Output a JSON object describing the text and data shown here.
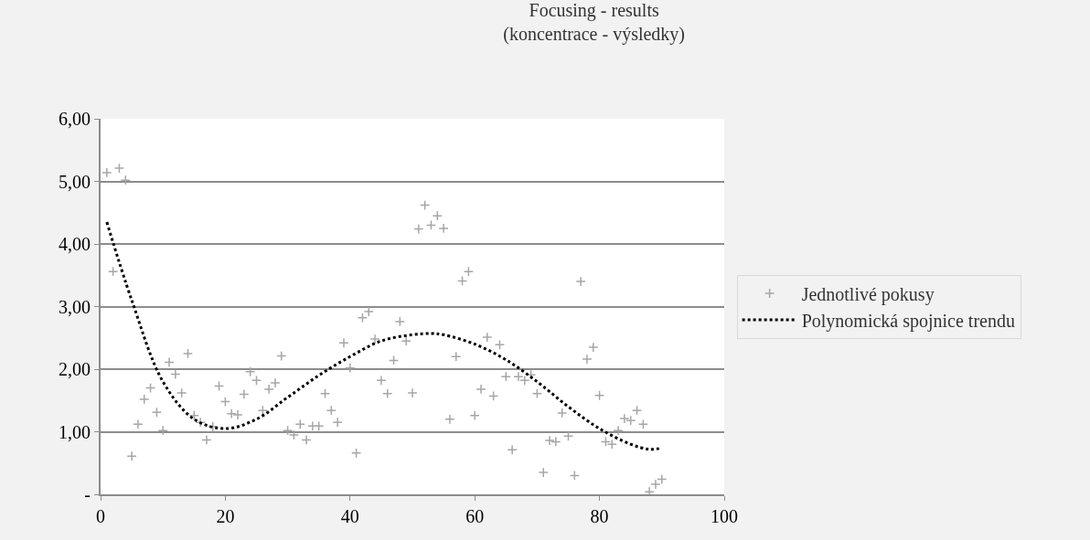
{
  "chart_data": {
    "type": "scatter",
    "title": "Focusing - results\n(koncentrace - výsledky)",
    "xlim": [
      0,
      100
    ],
    "xticks": [
      0,
      20,
      40,
      60,
      80,
      100
    ],
    "ylim": [
      0,
      6
    ],
    "yticks": [
      {
        "value": 0,
        "label": "-"
      },
      {
        "value": 1,
        "label": "1,00"
      },
      {
        "value": 2,
        "label": "2,00"
      },
      {
        "value": 3,
        "label": "3,00"
      },
      {
        "value": 4,
        "label": "4,00"
      },
      {
        "value": 5,
        "label": "5,00"
      },
      {
        "value": 6,
        "label": "6,00"
      }
    ],
    "grid": "y",
    "legend": "right",
    "series": [
      {
        "name": "Jednotlivé pokusy",
        "marker": "cross",
        "color": "#a6a6a6",
        "x": [
          1,
          2,
          3,
          4,
          5,
          6,
          7,
          8,
          9,
          10,
          11,
          12,
          13,
          14,
          15,
          16,
          17,
          18,
          19,
          20,
          21,
          22,
          23,
          24,
          25,
          26,
          27,
          28,
          29,
          30,
          31,
          32,
          33,
          34,
          35,
          36,
          37,
          38,
          39,
          40,
          41,
          42,
          43,
          44,
          45,
          46,
          47,
          48,
          49,
          50,
          51,
          52,
          53,
          54,
          55,
          56,
          57,
          58,
          59,
          60,
          61,
          62,
          63,
          64,
          65,
          66,
          67,
          68,
          69,
          70,
          71,
          72,
          73,
          74,
          75,
          76,
          77,
          78,
          79,
          80,
          81,
          82,
          83,
          84,
          85,
          86,
          87,
          88,
          89,
          90
        ],
        "values": [
          5.14,
          3.56,
          5.21,
          5.02,
          0.61,
          1.12,
          1.52,
          1.7,
          1.31,
          1.02,
          2.11,
          1.92,
          1.62,
          2.25,
          1.26,
          1.15,
          0.87,
          1.08,
          1.73,
          1.48,
          1.29,
          1.27,
          1.6,
          1.96,
          1.82,
          1.34,
          1.68,
          1.78,
          2.21,
          1.02,
          0.95,
          1.12,
          0.87,
          1.09,
          1.09,
          1.61,
          1.34,
          1.15,
          2.42,
          2.02,
          0.66,
          2.82,
          2.92,
          2.48,
          1.82,
          1.61,
          2.14,
          2.76,
          2.45,
          1.62,
          4.24,
          4.62,
          4.3,
          4.45,
          4.25,
          1.2,
          2.2,
          3.41,
          3.56,
          1.26,
          1.68,
          2.51,
          1.57,
          2.39,
          1.88,
          0.71,
          1.88,
          1.82,
          1.91,
          1.61,
          0.35,
          0.86,
          0.84,
          1.3,
          0.93,
          0.3,
          3.4,
          2.16,
          2.35,
          1.58,
          0.84,
          0.8,
          1.02,
          1.21,
          1.18,
          1.34,
          1.12,
          0.04,
          0.16,
          0.24
        ]
      },
      {
        "name": "Polynomická spojnice trendu",
        "type": "line",
        "marker": "none",
        "line_style": "dotted",
        "color": "#000000",
        "x": [
          1,
          5,
          10,
          15,
          20,
          25,
          30,
          35,
          40,
          45,
          50,
          53,
          55,
          60,
          65,
          70,
          75,
          80,
          85,
          88,
          90
        ],
        "values": [
          4.35,
          3.1,
          1.8,
          1.2,
          1.05,
          1.2,
          1.55,
          1.9,
          2.2,
          2.45,
          2.55,
          2.57,
          2.55,
          2.4,
          2.15,
          1.8,
          1.4,
          1.05,
          0.8,
          0.72,
          0.74
        ]
      }
    ]
  }
}
